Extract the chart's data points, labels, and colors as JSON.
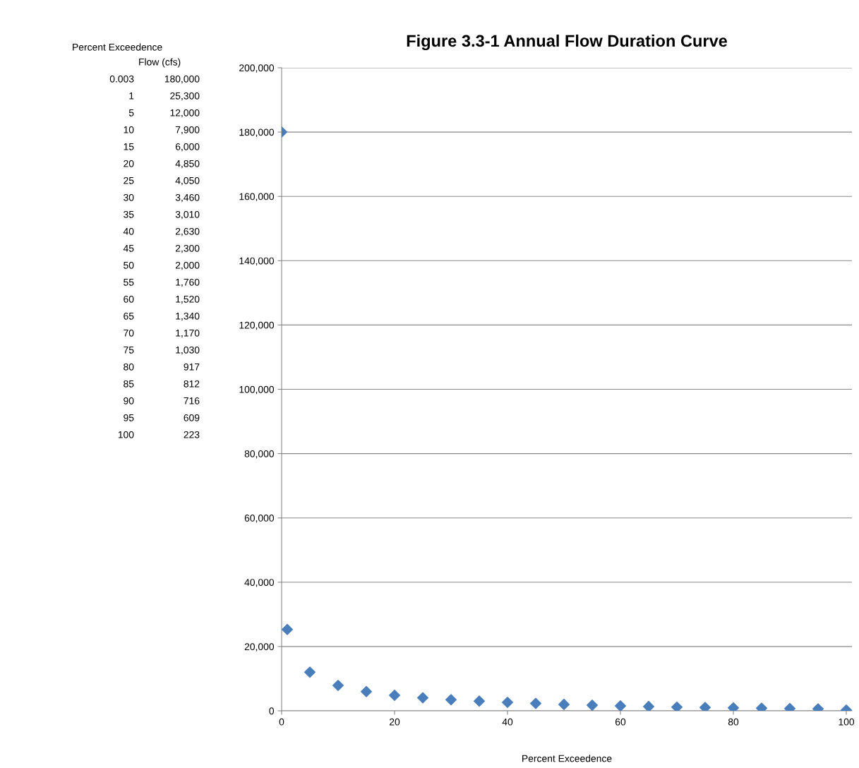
{
  "chart_data": {
    "type": "scatter",
    "title": "Figure 3.3-1 Annual Flow Duration Curve",
    "xlabel": "Percent Exceedence",
    "annotations": [
      "Percent Exceedence",
      "Flow (cfs)",
      "0.003",
      "180,000",
      "1",
      "25,300",
      "5",
      "12,000",
      "10",
      "7,900",
      "15",
      "6,000",
      "20",
      "4,850",
      "25",
      "4,050",
      "30",
      "3,460",
      "35",
      "3,010",
      "40",
      "2,630",
      "45",
      "2,300",
      "50",
      "2,000",
      "55",
      "1,760",
      "60",
      "1,520",
      "65",
      "1,340",
      "70",
      "1,170",
      "75",
      "1,030",
      "80",
      "917",
      "85",
      "812",
      "90",
      "716",
      "95",
      "609",
      "100",
      "223"
    ],
    "x": [
      0.003,
      1,
      5,
      10,
      15,
      20,
      25,
      30,
      35,
      40,
      45,
      50,
      55,
      60,
      65,
      70,
      75,
      80,
      85,
      90,
      95,
      100
    ],
    "series": [
      {
        "color": "#4a7ebb",
        "values": [
          180000,
          25300,
          12000,
          7900,
          6000,
          4850,
          4050,
          3460,
          3010,
          2630,
          2300,
          2000,
          1760,
          1520,
          1340,
          1170,
          1030,
          917,
          812,
          716,
          609,
          223
        ]
      }
    ],
    "marker": "diamond",
    "grid": "y",
    "xlim": [
      0,
      101
    ],
    "xticks": [
      0,
      20,
      40,
      60,
      80,
      100
    ],
    "ylim": [
      0,
      200000
    ],
    "yticks": [
      {
        "value": 0,
        "label": "0"
      },
      {
        "value": 20000,
        "label": "20,000"
      },
      {
        "value": 40000,
        "label": "40,000"
      },
      {
        "value": 60000,
        "label": "60,000"
      },
      {
        "value": 80000,
        "label": "80,000"
      },
      {
        "value": 100000,
        "label": "100,000"
      },
      {
        "value": 120000,
        "label": "120,000"
      },
      {
        "value": 140000,
        "label": "140,000"
      },
      {
        "value": 160000,
        "label": "160,000"
      },
      {
        "value": 180000,
        "label": "180,000"
      },
      {
        "value": 200000,
        "label": "200,000"
      }
    ]
  }
}
